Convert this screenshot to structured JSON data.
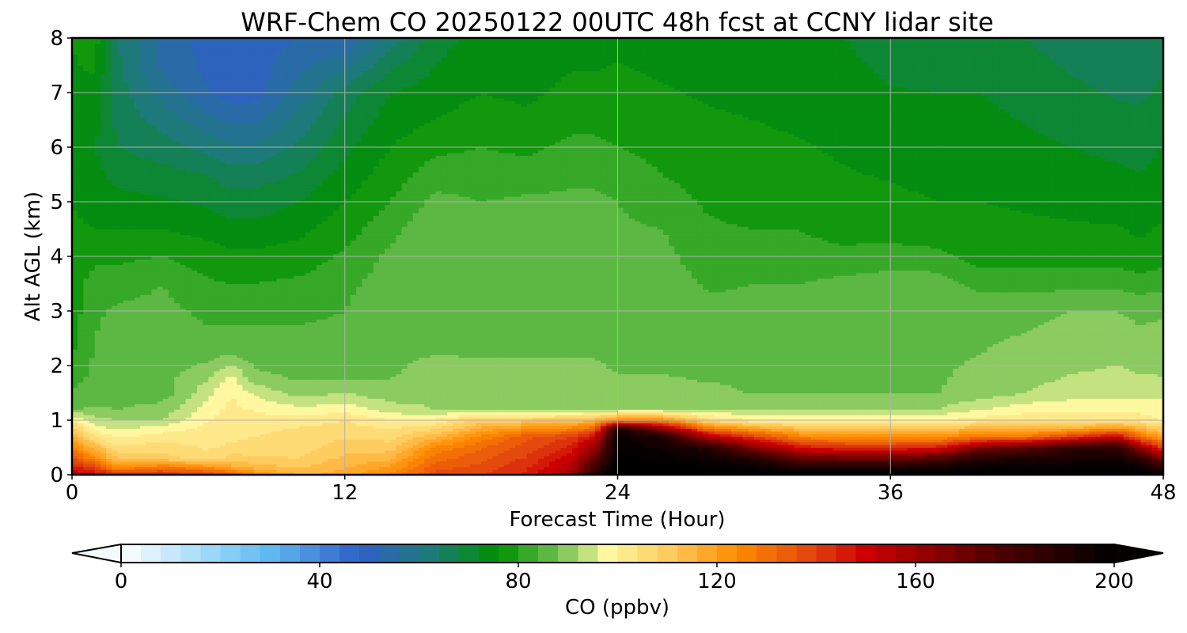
{
  "chart_data": {
    "type": "heatmap",
    "title": "WRF-Chem CO  20250122 00UTC 48h fcst at CCNY lidar site",
    "xlabel": "Forecast Time (Hour)",
    "ylabel": "Alt AGL (km)",
    "xlim": [
      0,
      48
    ],
    "ylim": [
      0,
      8
    ],
    "x_ticks": [
      0,
      12,
      24,
      36,
      48
    ],
    "y_ticks": [
      0,
      1,
      2,
      3,
      4,
      5,
      6,
      7,
      8
    ],
    "grid": true,
    "colorbar": {
      "label": "CO  (ppbv)",
      "range": [
        0,
        200
      ],
      "ticks": [
        0,
        40,
        80,
        120,
        160,
        200
      ],
      "extend": "both",
      "stops": [
        {
          "v": 0,
          "color": "#ffffff"
        },
        {
          "v": 20,
          "color": "#8fd3f7"
        },
        {
          "v": 30,
          "color": "#5fb8f0"
        },
        {
          "v": 48,
          "color": "#2f5fc8"
        },
        {
          "v": 62,
          "color": "#1e7a7a"
        },
        {
          "v": 76,
          "color": "#009000"
        },
        {
          "v": 88,
          "color": "#6ec050"
        },
        {
          "v": 98,
          "color": "#fff8a0"
        },
        {
          "v": 110,
          "color": "#ffcc60"
        },
        {
          "v": 124,
          "color": "#ff8c00"
        },
        {
          "v": 140,
          "color": "#e04010"
        },
        {
          "v": 150,
          "color": "#cc0000"
        },
        {
          "v": 176,
          "color": "#500000"
        },
        {
          "v": 200,
          "color": "#000000"
        }
      ]
    },
    "z_x": [
      0,
      1,
      2,
      4,
      6,
      7,
      8,
      10,
      12,
      14,
      16,
      18,
      20,
      22,
      23,
      24,
      26,
      28,
      30,
      32,
      34,
      36,
      38,
      40,
      42,
      44,
      46,
      47,
      48
    ],
    "z_y": [
      0,
      0.15,
      0.3,
      0.5,
      0.7,
      0.85,
      1.0,
      1.2,
      1.5,
      1.8,
      2.2,
      2.6,
      3.0,
      3.5,
      4.0,
      4.5,
      5.0,
      5.5,
      6.0,
      6.5,
      7.0,
      7.5,
      8.0
    ],
    "z_profiles": {
      "0": [
        [
          0,
          155
        ],
        [
          0.4,
          130
        ],
        [
          0.9,
          108
        ],
        [
          1.2,
          88
        ],
        [
          2.0,
          80
        ],
        [
          3.0,
          78
        ],
        [
          4.0,
          77
        ],
        [
          6.0,
          75
        ],
        [
          8.0,
          76
        ]
      ],
      "1": [
        [
          0,
          150
        ],
        [
          0.3,
          125
        ],
        [
          0.7,
          104
        ],
        [
          0.9,
          96
        ],
        [
          1.3,
          86
        ],
        [
          2.5,
          84
        ],
        [
          3.5,
          82
        ],
        [
          4.5,
          76
        ],
        [
          6.0,
          72
        ],
        [
          8.0,
          78
        ]
      ],
      "2": [
        [
          0,
          145
        ],
        [
          0.2,
          115
        ],
        [
          0.6,
          102
        ],
        [
          0.9,
          94
        ],
        [
          1.3,
          86
        ],
        [
          2.2,
          88
        ],
        [
          3.2,
          84
        ],
        [
          4.5,
          76
        ],
        [
          6.0,
          68
        ],
        [
          8.0,
          64
        ]
      ],
      "4": [
        [
          0,
          145
        ],
        [
          0.3,
          110
        ],
        [
          0.8,
          100
        ],
        [
          1.0,
          92
        ],
        [
          1.5,
          86
        ],
        [
          2.2,
          87
        ],
        [
          3.5,
          84
        ],
        [
          4.5,
          76
        ],
        [
          6.0,
          66
        ],
        [
          7.5,
          55
        ],
        [
          8.0,
          55
        ]
      ],
      "6": [
        [
          0,
          140
        ],
        [
          0.3,
          105
        ],
        [
          1.0,
          100
        ],
        [
          1.6,
          94
        ],
        [
          2.2,
          86
        ],
        [
          3.0,
          83
        ],
        [
          4.0,
          78
        ],
        [
          5.5,
          68
        ],
        [
          7.0,
          52
        ],
        [
          8.0,
          50
        ]
      ],
      "7": [
        [
          0,
          135
        ],
        [
          0.2,
          112
        ],
        [
          0.6,
          103
        ],
        [
          1.5,
          100
        ],
        [
          1.9,
          96
        ],
        [
          2.3,
          86
        ],
        [
          3.0,
          83
        ],
        [
          4.0,
          77
        ],
        [
          5.5,
          66
        ],
        [
          7.0,
          50
        ],
        [
          8.0,
          48
        ]
      ],
      "8": [
        [
          0,
          125
        ],
        [
          0.2,
          110
        ],
        [
          0.7,
          104
        ],
        [
          1.4,
          98
        ],
        [
          1.7,
          90
        ],
        [
          2.2,
          86
        ],
        [
          3.0,
          83
        ],
        [
          4.0,
          77
        ],
        [
          5.5,
          66
        ],
        [
          7.0,
          50
        ],
        [
          8.0,
          50
        ]
      ],
      "10": [
        [
          0,
          115
        ],
        [
          0.3,
          108
        ],
        [
          0.9,
          104
        ],
        [
          1.3,
          95
        ],
        [
          1.6,
          88
        ],
        [
          2.5,
          85
        ],
        [
          3.3,
          82
        ],
        [
          5.0,
          72
        ],
        [
          7.0,
          58
        ],
        [
          8.0,
          52
        ]
      ],
      "12": [
        [
          0,
          118
        ],
        [
          0.5,
          110
        ],
        [
          1.0,
          104
        ],
        [
          1.3,
          96
        ],
        [
          1.7,
          88
        ],
        [
          2.5,
          85
        ],
        [
          3.5,
          83
        ],
        [
          5.0,
          76
        ],
        [
          7.0,
          66
        ],
        [
          8.0,
          52
        ]
      ],
      "14": [
        [
          0,
          125
        ],
        [
          0.4,
          112
        ],
        [
          0.9,
          103
        ],
        [
          1.2,
          94
        ],
        [
          1.6,
          88
        ],
        [
          3.0,
          87
        ],
        [
          4.0,
          85
        ],
        [
          5.0,
          80
        ],
        [
          7.0,
          72
        ],
        [
          8.0,
          62
        ]
      ],
      "16": [
        [
          0,
          138
        ],
        [
          0.5,
          125
        ],
        [
          0.9,
          105
        ],
        [
          1.2,
          92
        ],
        [
          2.0,
          88
        ],
        [
          3.5,
          88
        ],
        [
          4.5,
          88
        ],
        [
          5.2,
          84
        ],
        [
          6.5,
          76
        ],
        [
          8.0,
          70
        ]
      ],
      "18": [
        [
          0,
          140
        ],
        [
          0.6,
          130
        ],
        [
          1.0,
          110
        ],
        [
          1.2,
          92
        ],
        [
          2.0,
          88
        ],
        [
          3.5,
          87
        ],
        [
          4.5,
          86
        ],
        [
          5.5,
          82
        ],
        [
          7.0,
          76
        ],
        [
          8.0,
          74
        ]
      ],
      "20": [
        [
          0,
          145
        ],
        [
          0.7,
          135
        ],
        [
          1.0,
          110
        ],
        [
          1.2,
          92
        ],
        [
          2.0,
          88
        ],
        [
          3.5,
          87
        ],
        [
          4.8,
          86
        ],
        [
          5.8,
          80
        ],
        [
          7.0,
          75
        ],
        [
          8.0,
          73
        ]
      ],
      "22": [
        [
          0,
          160
        ],
        [
          0.7,
          140
        ],
        [
          1.0,
          112
        ],
        [
          1.2,
          92
        ],
        [
          2.0,
          88
        ],
        [
          3.5,
          87
        ],
        [
          5.0,
          85
        ],
        [
          6.2,
          80
        ],
        [
          8.0,
          74
        ]
      ],
      "23": [
        [
          0,
          190
        ],
        [
          0.7,
          150
        ],
        [
          1.0,
          115
        ],
        [
          1.2,
          92
        ],
        [
          2.0,
          88
        ],
        [
          3.5,
          87
        ],
        [
          5.0,
          85
        ],
        [
          6.2,
          80
        ],
        [
          8.0,
          74
        ]
      ],
      "24": [
        [
          0,
          205
        ],
        [
          0.85,
          195
        ],
        [
          1.0,
          125
        ],
        [
          1.2,
          92
        ],
        [
          2.0,
          87
        ],
        [
          3.5,
          86
        ],
        [
          5.0,
          84
        ],
        [
          6.0,
          80
        ],
        [
          8.0,
          75
        ]
      ],
      "26": [
        [
          0,
          205
        ],
        [
          0.75,
          190
        ],
        [
          1.0,
          125
        ],
        [
          1.2,
          92
        ],
        [
          2.0,
          87
        ],
        [
          3.5,
          86
        ],
        [
          4.5,
          84
        ],
        [
          5.5,
          80
        ],
        [
          8.0,
          74
        ]
      ],
      "28": [
        [
          0,
          205
        ],
        [
          0.5,
          190
        ],
        [
          0.9,
          120
        ],
        [
          1.1,
          92
        ],
        [
          2.0,
          86
        ],
        [
          3.0,
          85
        ],
        [
          4.0,
          82
        ],
        [
          5.5,
          78
        ],
        [
          8.0,
          74
        ]
      ],
      "30": [
        [
          0,
          205
        ],
        [
          0.3,
          190
        ],
        [
          0.7,
          140
        ],
        [
          1.0,
          100
        ],
        [
          1.3,
          88
        ],
        [
          2.5,
          86
        ],
        [
          3.5,
          84
        ],
        [
          5.0,
          78
        ],
        [
          8.0,
          74
        ]
      ],
      "32": [
        [
          0,
          205
        ],
        [
          0.2,
          185
        ],
        [
          0.6,
          135
        ],
        [
          1.0,
          100
        ],
        [
          1.3,
          88
        ],
        [
          2.5,
          86
        ],
        [
          3.5,
          84
        ],
        [
          5.0,
          78
        ],
        [
          8.0,
          73
        ]
      ],
      "34": [
        [
          0,
          205
        ],
        [
          0.2,
          185
        ],
        [
          0.6,
          130
        ],
        [
          1.0,
          100
        ],
        [
          1.3,
          88
        ],
        [
          2.5,
          87
        ],
        [
          3.5,
          85
        ],
        [
          4.5,
          78
        ],
        [
          8.0,
          72
        ]
      ],
      "36": [
        [
          0,
          205
        ],
        [
          0.2,
          185
        ],
        [
          0.6,
          130
        ],
        [
          1.0,
          100
        ],
        [
          1.3,
          88
        ],
        [
          2.5,
          88
        ],
        [
          3.5,
          86
        ],
        [
          4.5,
          78
        ],
        [
          8.0,
          70
        ]
      ],
      "38": [
        [
          0,
          205
        ],
        [
          0.25,
          185
        ],
        [
          0.6,
          130
        ],
        [
          1.0,
          100
        ],
        [
          1.3,
          88
        ],
        [
          2.5,
          87
        ],
        [
          3.5,
          86
        ],
        [
          4.5,
          77
        ],
        [
          8.0,
          70
        ]
      ],
      "40": [
        [
          0,
          205
        ],
        [
          0.4,
          185
        ],
        [
          0.7,
          130
        ],
        [
          1.0,
          102
        ],
        [
          1.4,
          90
        ],
        [
          2.2,
          88
        ],
        [
          3.0,
          87
        ],
        [
          4.0,
          78
        ],
        [
          8.0,
          70
        ]
      ],
      "42": [
        [
          0,
          205
        ],
        [
          0.45,
          185
        ],
        [
          0.7,
          130
        ],
        [
          0.95,
          104
        ],
        [
          1.5,
          92
        ],
        [
          2.2,
          89
        ],
        [
          3.0,
          87
        ],
        [
          4.0,
          78
        ],
        [
          8.0,
          68
        ]
      ],
      "44": [
        [
          0,
          205
        ],
        [
          0.5,
          185
        ],
        [
          0.75,
          130
        ],
        [
          0.95,
          104
        ],
        [
          1.5,
          94
        ],
        [
          2.2,
          90
        ],
        [
          3.0,
          88
        ],
        [
          4.0,
          78
        ],
        [
          8.0,
          66
        ]
      ],
      "46": [
        [
          0,
          205
        ],
        [
          0.55,
          185
        ],
        [
          0.8,
          130
        ],
        [
          1.0,
          104
        ],
        [
          1.3,
          96
        ],
        [
          2.0,
          92
        ],
        [
          3.0,
          88
        ],
        [
          4.0,
          78
        ],
        [
          8.0,
          64
        ]
      ],
      "47": [
        [
          0,
          205
        ],
        [
          0.35,
          185
        ],
        [
          0.7,
          130
        ],
        [
          1.0,
          102
        ],
        [
          1.5,
          94
        ],
        [
          2.2,
          90
        ],
        [
          3.0,
          87
        ],
        [
          4.0,
          77
        ],
        [
          8.0,
          64
        ]
      ],
      "48": [
        [
          0,
          200
        ],
        [
          0.25,
          175
        ],
        [
          0.6,
          125
        ],
        [
          1.0,
          100
        ],
        [
          1.8,
          92
        ],
        [
          2.5,
          90
        ],
        [
          3.2,
          86
        ],
        [
          4.0,
          78
        ],
        [
          8.0,
          66
        ]
      ]
    }
  }
}
